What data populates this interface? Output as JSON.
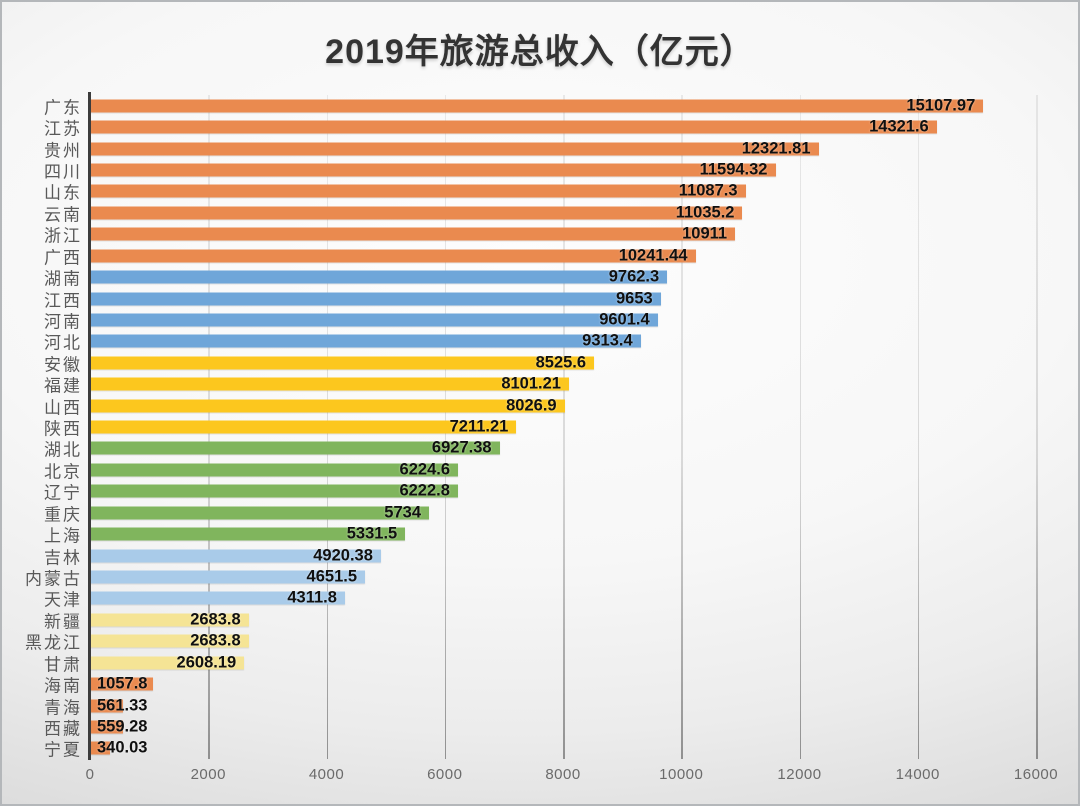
{
  "chart_data": {
    "type": "bar",
    "orientation": "horizontal",
    "title": "2019年旅游总收入（亿元）",
    "xlabel": "",
    "ylabel": "",
    "xlim": [
      0,
      16000
    ],
    "x_ticks": [
      0,
      2000,
      4000,
      6000,
      8000,
      10000,
      12000,
      14000,
      16000
    ],
    "grid": "vertical",
    "legend": false,
    "palette": {
      "orange": "#EA8A4F",
      "blue": "#6FA6D9",
      "yellow": "#FCC71E",
      "green": "#80B55D",
      "lightblue": "#A9CBE9",
      "lightyellow": "#F5E495"
    },
    "bars": [
      {
        "label": "广东",
        "value": 15107.97,
        "display": "15107.97",
        "color_group": "orange"
      },
      {
        "label": "江苏",
        "value": 14321.6,
        "display": "14321.6",
        "color_group": "orange"
      },
      {
        "label": "贵州",
        "value": 12321.81,
        "display": "12321.81",
        "color_group": "orange"
      },
      {
        "label": "四川",
        "value": 11594.32,
        "display": "11594.32",
        "color_group": "orange"
      },
      {
        "label": "山东",
        "value": 11087.3,
        "display": "11087.3",
        "color_group": "orange"
      },
      {
        "label": "云南",
        "value": 11035.2,
        "display": "11035.2",
        "color_group": "orange"
      },
      {
        "label": "浙江",
        "value": 10911,
        "display": "10911",
        "color_group": "orange"
      },
      {
        "label": "广西",
        "value": 10241.44,
        "display": "10241.44",
        "color_group": "orange"
      },
      {
        "label": "湖南",
        "value": 9762.3,
        "display": "9762.3",
        "color_group": "blue"
      },
      {
        "label": "江西",
        "value": 9653,
        "display": "9653",
        "color_group": "blue"
      },
      {
        "label": "河南",
        "value": 9601.4,
        "display": "9601.4",
        "color_group": "blue"
      },
      {
        "label": "河北",
        "value": 9313.4,
        "display": "9313.4",
        "color_group": "blue"
      },
      {
        "label": "安徽",
        "value": 8525.6,
        "display": "8525.6",
        "color_group": "yellow"
      },
      {
        "label": "福建",
        "value": 8101.21,
        "display": "8101.21",
        "color_group": "yellow"
      },
      {
        "label": "山西",
        "value": 8026.9,
        "display": "8026.9",
        "color_group": "yellow"
      },
      {
        "label": "陕西",
        "value": 7211.21,
        "display": "7211.21",
        "color_group": "yellow"
      },
      {
        "label": "湖北",
        "value": 6927.38,
        "display": "6927.38",
        "color_group": "green"
      },
      {
        "label": "北京",
        "value": 6224.6,
        "display": "6224.6",
        "color_group": "green"
      },
      {
        "label": "辽宁",
        "value": 6222.8,
        "display": "6222.8",
        "color_group": "green"
      },
      {
        "label": "重庆",
        "value": 5734,
        "display": "5734",
        "color_group": "green"
      },
      {
        "label": "上海",
        "value": 5331.5,
        "display": "5331.5",
        "color_group": "green"
      },
      {
        "label": "吉林",
        "value": 4920.38,
        "display": "4920.38",
        "color_group": "lightblue"
      },
      {
        "label": "内蒙古",
        "value": 4651.5,
        "display": "4651.5",
        "color_group": "lightblue"
      },
      {
        "label": "天津",
        "value": 4311.8,
        "display": "4311.8",
        "color_group": "lightblue"
      },
      {
        "label": "新疆",
        "value": 2683.8,
        "display": "2683.8",
        "color_group": "lightyellow"
      },
      {
        "label": "黑龙江",
        "value": 2683.8,
        "display": "2683.8",
        "color_group": "lightyellow"
      },
      {
        "label": "甘肃",
        "value": 2608.19,
        "display": "2608.19",
        "color_group": "lightyellow"
      },
      {
        "label": "海南",
        "value": 1057.8,
        "display": "1057.8",
        "color_group": "orange"
      },
      {
        "label": "青海",
        "value": 561.33,
        "display": "561.33",
        "color_group": "orange"
      },
      {
        "label": "西藏",
        "value": 559.28,
        "display": "559.28",
        "color_group": "orange"
      },
      {
        "label": "宁夏",
        "value": 340.03,
        "display": "340.03",
        "color_group": "orange"
      }
    ]
  }
}
